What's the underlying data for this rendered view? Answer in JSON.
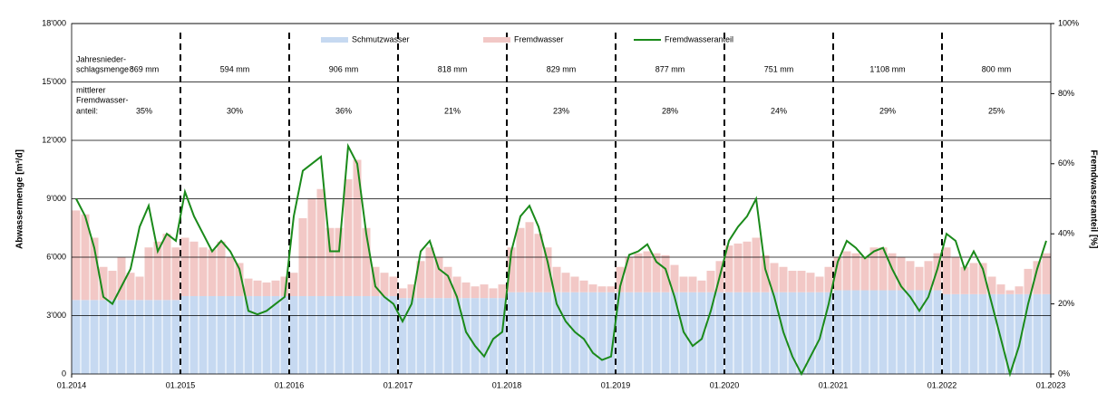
{
  "chart_data": {
    "type": "stacked-bar-line",
    "y_label": "Abwassermenge [m³/d]",
    "y2_label": "Fremdwasseranteil [%]",
    "x": [
      "01.2014",
      "02.2014",
      "03.2014",
      "04.2014",
      "05.2014",
      "06.2014",
      "07.2014",
      "08.2014",
      "09.2014",
      "10.2014",
      "11.2014",
      "12.2014",
      "01.2015",
      "02.2015",
      "03.2015",
      "04.2015",
      "05.2015",
      "06.2015",
      "07.2015",
      "08.2015",
      "09.2015",
      "10.2015",
      "11.2015",
      "12.2015",
      "01.2016",
      "02.2016",
      "03.2016",
      "04.2016",
      "05.2016",
      "06.2016",
      "07.2016",
      "08.2016",
      "09.2016",
      "10.2016",
      "11.2016",
      "12.2016",
      "01.2017",
      "02.2017",
      "03.2017",
      "04.2017",
      "05.2017",
      "06.2017",
      "07.2017",
      "08.2017",
      "09.2017",
      "10.2017",
      "11.2017",
      "12.2017",
      "01.2018",
      "02.2018",
      "03.2018",
      "04.2018",
      "05.2018",
      "06.2018",
      "07.2018",
      "08.2018",
      "09.2018",
      "10.2018",
      "11.2018",
      "12.2018",
      "01.2019",
      "02.2019",
      "03.2019",
      "04.2019",
      "05.2019",
      "06.2019",
      "07.2019",
      "08.2019",
      "09.2019",
      "10.2019",
      "11.2019",
      "12.2019",
      "01.2020",
      "02.2020",
      "03.2020",
      "04.2020",
      "05.2020",
      "06.2020",
      "07.2020",
      "08.2020",
      "09.2020",
      "10.2020",
      "11.2020",
      "12.2020",
      "01.2021",
      "02.2021",
      "03.2021",
      "04.2021",
      "05.2021",
      "06.2021",
      "07.2021",
      "08.2021",
      "09.2021",
      "10.2021",
      "11.2021",
      "12.2021",
      "01.2022",
      "02.2022",
      "03.2022",
      "04.2022",
      "05.2022",
      "06.2022",
      "07.2022",
      "08.2022",
      "09.2022",
      "10.2022",
      "11.2022",
      "12.2022"
    ],
    "xlim": [
      "01.2014",
      "01.2023"
    ],
    "xticks": [
      "01.2014",
      "01.2015",
      "01.2016",
      "01.2017",
      "01.2018",
      "01.2019",
      "01.2020",
      "01.2021",
      "01.2022",
      "01.2023"
    ],
    "ylim": [
      0,
      18000
    ],
    "yticks": [
      0,
      {
        "value": 3000,
        "label": "3'000"
      },
      {
        "value": 6000,
        "label": "6'000"
      },
      {
        "value": 9000,
        "label": "9'000"
      },
      {
        "value": 12000,
        "label": "12'000"
      },
      {
        "value": 15000,
        "label": "15'000"
      },
      {
        "value": 18000,
        "label": "18'000"
      }
    ],
    "y2lim": [
      0,
      100
    ],
    "y2ticks": [
      {
        "value": 0,
        "label": "0%"
      },
      {
        "value": 20,
        "label": "20%"
      },
      {
        "value": 40,
        "label": "40%"
      },
      {
        "value": 60,
        "label": "60%"
      },
      {
        "value": 80,
        "label": "80%"
      },
      {
        "value": 100,
        "label": "100%"
      }
    ],
    "grid": true,
    "series": [
      {
        "name": "Schmutzwasser",
        "color": "#c6d9f1",
        "values": [
          3800,
          3800,
          3800,
          3800,
          3800,
          3800,
          3800,
          3800,
          3800,
          3800,
          3800,
          3800,
          4000,
          4000,
          4000,
          4000,
          4000,
          4000,
          4000,
          4000,
          4000,
          4000,
          4000,
          4000,
          4000,
          4000,
          4000,
          4000,
          4000,
          4000,
          4000,
          4000,
          4000,
          4000,
          4000,
          4000,
          3900,
          3900,
          3900,
          3900,
          3900,
          3900,
          3900,
          3900,
          3900,
          3900,
          3900,
          3900,
          4200,
          4200,
          4200,
          4200,
          4200,
          4200,
          4200,
          4200,
          4200,
          4200,
          4200,
          4200,
          4200,
          4200,
          4200,
          4200,
          4200,
          4200,
          4200,
          4200,
          4200,
          4200,
          4200,
          4200,
          4200,
          4200,
          4200,
          4200,
          4200,
          4200,
          4200,
          4200,
          4200,
          4200,
          4200,
          4200,
          4300,
          4300,
          4300,
          4300,
          4300,
          4300,
          4300,
          4300,
          4300,
          4300,
          4300,
          4300,
          4100,
          4100,
          4100,
          4100,
          4100,
          4100,
          4100,
          4100,
          4100,
          4100,
          4100,
          4100
        ]
      },
      {
        "name": "Fremdwasser",
        "color": "#f2c8c6",
        "values": [
          4600,
          4400,
          3200,
          1700,
          1500,
          2200,
          1400,
          1200,
          2700,
          3000,
          3400,
          2700,
          3000,
          2800,
          2500,
          2400,
          2800,
          2000,
          1700,
          900,
          800,
          700,
          800,
          1000,
          1200,
          4000,
          5000,
          5500,
          3500,
          3500,
          6000,
          7000,
          3500,
          1500,
          1200,
          1000,
          500,
          700,
          1900,
          2600,
          2100,
          1600,
          1100,
          800,
          600,
          700,
          500,
          700,
          2300,
          3300,
          3600,
          3000,
          2300,
          1300,
          1000,
          800,
          600,
          400,
          300,
          300,
          1300,
          1800,
          2000,
          2100,
          2000,
          1900,
          1400,
          800,
          800,
          600,
          1100,
          1600,
          2400,
          2500,
          2600,
          2800,
          1900,
          1500,
          1300,
          1100,
          1100,
          1000,
          800,
          1300,
          1700,
          2000,
          1900,
          1700,
          2200,
          2200,
          1900,
          1700,
          1500,
          1200,
          1500,
          1900,
          2400,
          1900,
          1400,
          1600,
          1600,
          900,
          500,
          200,
          400,
          1300,
          1700,
          2100
        ]
      },
      {
        "name": "Fremdwasseranteil",
        "color": "#1a8a1a",
        "axis": "y2",
        "values": [
          50,
          45,
          36,
          22,
          20,
          25,
          30,
          42,
          48,
          35,
          40,
          38,
          52,
          45,
          40,
          35,
          38,
          35,
          30,
          18,
          17,
          18,
          20,
          22,
          45,
          58,
          60,
          62,
          35,
          35,
          65,
          60,
          40,
          25,
          22,
          20,
          15,
          20,
          35,
          38,
          30,
          28,
          22,
          12,
          8,
          5,
          10,
          12,
          35,
          45,
          48,
          42,
          32,
          20,
          15,
          12,
          10,
          6,
          4,
          5,
          25,
          34,
          35,
          37,
          32,
          30,
          22,
          12,
          8,
          10,
          18,
          28,
          38,
          42,
          45,
          50,
          30,
          22,
          12,
          5,
          0,
          5,
          10,
          20,
          32,
          38,
          36,
          33,
          35,
          36,
          30,
          25,
          22,
          18,
          22,
          30,
          40,
          38,
          30,
          35,
          30,
          20,
          10,
          0,
          8,
          20,
          30,
          38
        ]
      }
    ],
    "annotations": {
      "rain_label": [
        "Jahresnieder-",
        "schlagsmenge :"
      ],
      "rain": [
        "869 mm",
        "594 mm",
        "906 mm",
        "818 mm",
        "829 mm",
        "877 mm",
        "751 mm",
        "1'108 mm",
        "800 mm"
      ],
      "share_label": [
        "mittlerer",
        "Fremdwasser-",
        "anteil:"
      ],
      "share": [
        "35%",
        "30%",
        "36%",
        "21%",
        "23%",
        "28%",
        "24%",
        "29%",
        "25%"
      ]
    }
  }
}
